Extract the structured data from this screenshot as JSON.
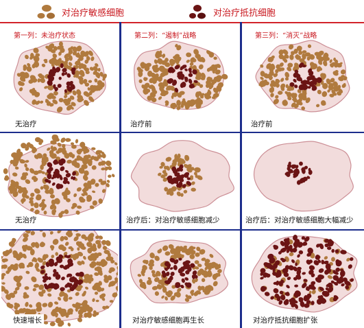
{
  "legend": [
    {
      "label": "对治疗敏感细胞",
      "icon": "sensitive-cells-icon"
    },
    {
      "label": "对治疗抵抗细胞",
      "icon": "resistant-cells-icon"
    }
  ],
  "column_headings": [
    "第一列：未治疗状态",
    "第二列：“遏制”战略",
    "第三列：“消灭”战略"
  ],
  "panels": [
    {
      "label": "无治疗"
    },
    {
      "label": "治疗前"
    },
    {
      "label": "治疗前"
    },
    {
      "label": "无治疗"
    },
    {
      "label": "治疗后：对治疗敏感细胞减少"
    },
    {
      "label": "治疗后：对治疗敏感细胞大幅减少"
    },
    {
      "label": "快速增长"
    },
    {
      "label": "对治疗敏感细胞再生长"
    },
    {
      "label": "对治疗抵抗细胞扩张"
    }
  ],
  "colors": {
    "title_red": "#c8161d",
    "grid_blue": "#1c2d8c",
    "grid_red": "#d2232a",
    "tissue_pink": "#f2dcdc",
    "tissue_edge": "#cc8f96",
    "sensitive_cell": "#b07a3e",
    "resistant_cell": "#6b1414"
  }
}
